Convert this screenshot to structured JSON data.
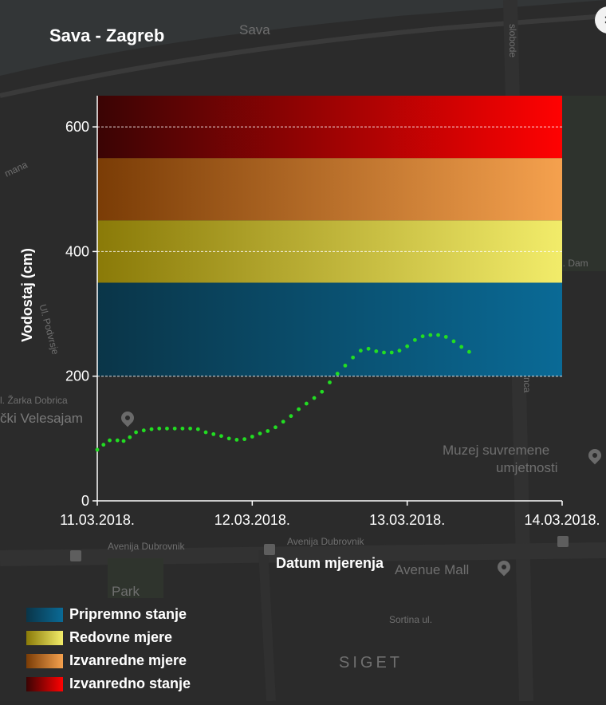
{
  "panel": {
    "title": "Sava - Zagreb",
    "close_label": "×"
  },
  "map": {
    "labels": {
      "river": "Sava",
      "slobode": "slobode",
      "velesajam": "čki Velesajam",
      "muzej_line1": "Muzej suvremene",
      "muzej_line2": "umjetnosti",
      "avenija1": "Avenija Dubrovnik",
      "avenija2": "Avenija Dubrovnik",
      "avenue_mall": "Avenue Mall",
      "park": "Park",
      "siget": "SIGET",
      "sortina": "Sortina ul.",
      "dobrica": "l. Žarka Dobrica",
      "dam": "l. Dam",
      "mana": "mana",
      "podvrsje": "Ul. Podvrsje",
      "nca": "nca"
    }
  },
  "chart_data": {
    "type": "line",
    "title": "Sava - Zagreb",
    "xlabel": "Datum mjerenja",
    "ylabel": "Vodostaj (cm)",
    "ylim": [
      0,
      650
    ],
    "xlim": [
      "11.03.2018.",
      "14.03.2018."
    ],
    "x_ticks": [
      "11.03.2018.",
      "12.03.2018.",
      "13.03.2018.",
      "14.03.2018."
    ],
    "y_ticks": [
      0,
      200,
      400,
      600
    ],
    "grid": {
      "y_lines": [
        200,
        400,
        600
      ]
    },
    "bands": [
      {
        "name": "Pripremno stanje",
        "from": 200,
        "to": 350,
        "color_dark": "#0a3548",
        "color_light": "#0a6a96"
      },
      {
        "name": "Redovne mjere",
        "from": 350,
        "to": 450,
        "color_dark": "#8a7a08",
        "color_light": "#f2ec6a"
      },
      {
        "name": "Izvanredne mjere",
        "from": 450,
        "to": 550,
        "color_dark": "#7a3c06",
        "color_light": "#f5a14e"
      },
      {
        "name": "Izvanredno stanje",
        "from": 550,
        "to": 650,
        "color_dark": "#3a0404",
        "color_light": "#ff0202"
      }
    ],
    "series": [
      {
        "color": "#22dd22",
        "points": [
          [
            0.0,
            82
          ],
          [
            0.04,
            90
          ],
          [
            0.08,
            97
          ],
          [
            0.13,
            97
          ],
          [
            0.17,
            96
          ],
          [
            0.21,
            102
          ],
          [
            0.25,
            110
          ],
          [
            0.3,
            113
          ],
          [
            0.35,
            115
          ],
          [
            0.4,
            116
          ],
          [
            0.45,
            116
          ],
          [
            0.5,
            116
          ],
          [
            0.55,
            116
          ],
          [
            0.6,
            116
          ],
          [
            0.65,
            115
          ],
          [
            0.7,
            110
          ],
          [
            0.75,
            107
          ],
          [
            0.8,
            104
          ],
          [
            0.85,
            100
          ],
          [
            0.9,
            98
          ],
          [
            0.95,
            99
          ],
          [
            1.0,
            103
          ],
          [
            1.05,
            108
          ],
          [
            1.1,
            112
          ],
          [
            1.15,
            118
          ],
          [
            1.2,
            127
          ],
          [
            1.25,
            136
          ],
          [
            1.3,
            147
          ],
          [
            1.35,
            156
          ],
          [
            1.4,
            165
          ],
          [
            1.45,
            175
          ],
          [
            1.5,
            190
          ],
          [
            1.55,
            204
          ],
          [
            1.6,
            217
          ],
          [
            1.65,
            230
          ],
          [
            1.7,
            241
          ],
          [
            1.75,
            244
          ],
          [
            1.8,
            240
          ],
          [
            1.85,
            238
          ],
          [
            1.9,
            238
          ],
          [
            1.95,
            241
          ],
          [
            2.0,
            248
          ],
          [
            2.05,
            258
          ],
          [
            2.1,
            264
          ],
          [
            2.15,
            266
          ],
          [
            2.2,
            266
          ],
          [
            2.25,
            263
          ],
          [
            2.3,
            256
          ],
          [
            2.35,
            247
          ],
          [
            2.4,
            239
          ]
        ]
      }
    ]
  },
  "legend": [
    {
      "label": "Pripremno stanje",
      "color_dark": "#0a3548",
      "color_light": "#0a6a96"
    },
    {
      "label": "Redovne mjere",
      "color_dark": "#8a7a08",
      "color_light": "#f2ec6a"
    },
    {
      "label": "Izvanredne mjere",
      "color_dark": "#7a3c06",
      "color_light": "#f5a14e"
    },
    {
      "label": "Izvanredno stanje",
      "color_dark": "#3a0404",
      "color_light": "#ff0202"
    }
  ]
}
